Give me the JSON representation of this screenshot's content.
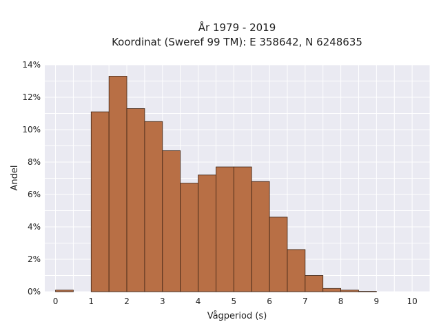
{
  "chart_data": {
    "type": "bar",
    "title": "År 1979 - 2019",
    "subtitle": "Koordinat (Sweref 99 TM): E 358642, N 6248635",
    "xlabel": "Vågperiod (s)",
    "ylabel": "Andel",
    "xlim": [
      -0.3,
      10.5
    ],
    "ylim": [
      0,
      14
    ],
    "xticks": [
      0,
      1,
      2,
      3,
      4,
      5,
      6,
      7,
      8,
      9,
      10
    ],
    "yticks": [
      0,
      2,
      4,
      6,
      8,
      10,
      12,
      14
    ],
    "ytick_suffix": "%",
    "grid": true,
    "bar_color": "#b86f45",
    "background_color": "#eaeaf2",
    "bins": [
      {
        "x0": 0.0,
        "x1": 0.5,
        "value": 0.1
      },
      {
        "x0": 0.5,
        "x1": 1.0,
        "value": 0.0
      },
      {
        "x0": 1.0,
        "x1": 1.5,
        "value": 11.1
      },
      {
        "x0": 1.5,
        "x1": 2.0,
        "value": 13.3
      },
      {
        "x0": 2.0,
        "x1": 2.5,
        "value": 11.3
      },
      {
        "x0": 2.5,
        "x1": 3.0,
        "value": 10.5
      },
      {
        "x0": 3.0,
        "x1": 3.5,
        "value": 8.7
      },
      {
        "x0": 3.5,
        "x1": 4.0,
        "value": 6.7
      },
      {
        "x0": 4.0,
        "x1": 4.5,
        "value": 7.2
      },
      {
        "x0": 4.5,
        "x1": 5.0,
        "value": 7.7
      },
      {
        "x0": 5.0,
        "x1": 5.5,
        "value": 7.7
      },
      {
        "x0": 5.5,
        "x1": 6.0,
        "value": 6.8
      },
      {
        "x0": 6.0,
        "x1": 6.5,
        "value": 4.6
      },
      {
        "x0": 6.5,
        "x1": 7.0,
        "value": 2.6
      },
      {
        "x0": 7.0,
        "x1": 7.5,
        "value": 1.0
      },
      {
        "x0": 7.5,
        "x1": 8.0,
        "value": 0.2
      },
      {
        "x0": 8.0,
        "x1": 8.5,
        "value": 0.1
      },
      {
        "x0": 8.5,
        "x1": 9.0,
        "value": 0.02
      }
    ]
  }
}
